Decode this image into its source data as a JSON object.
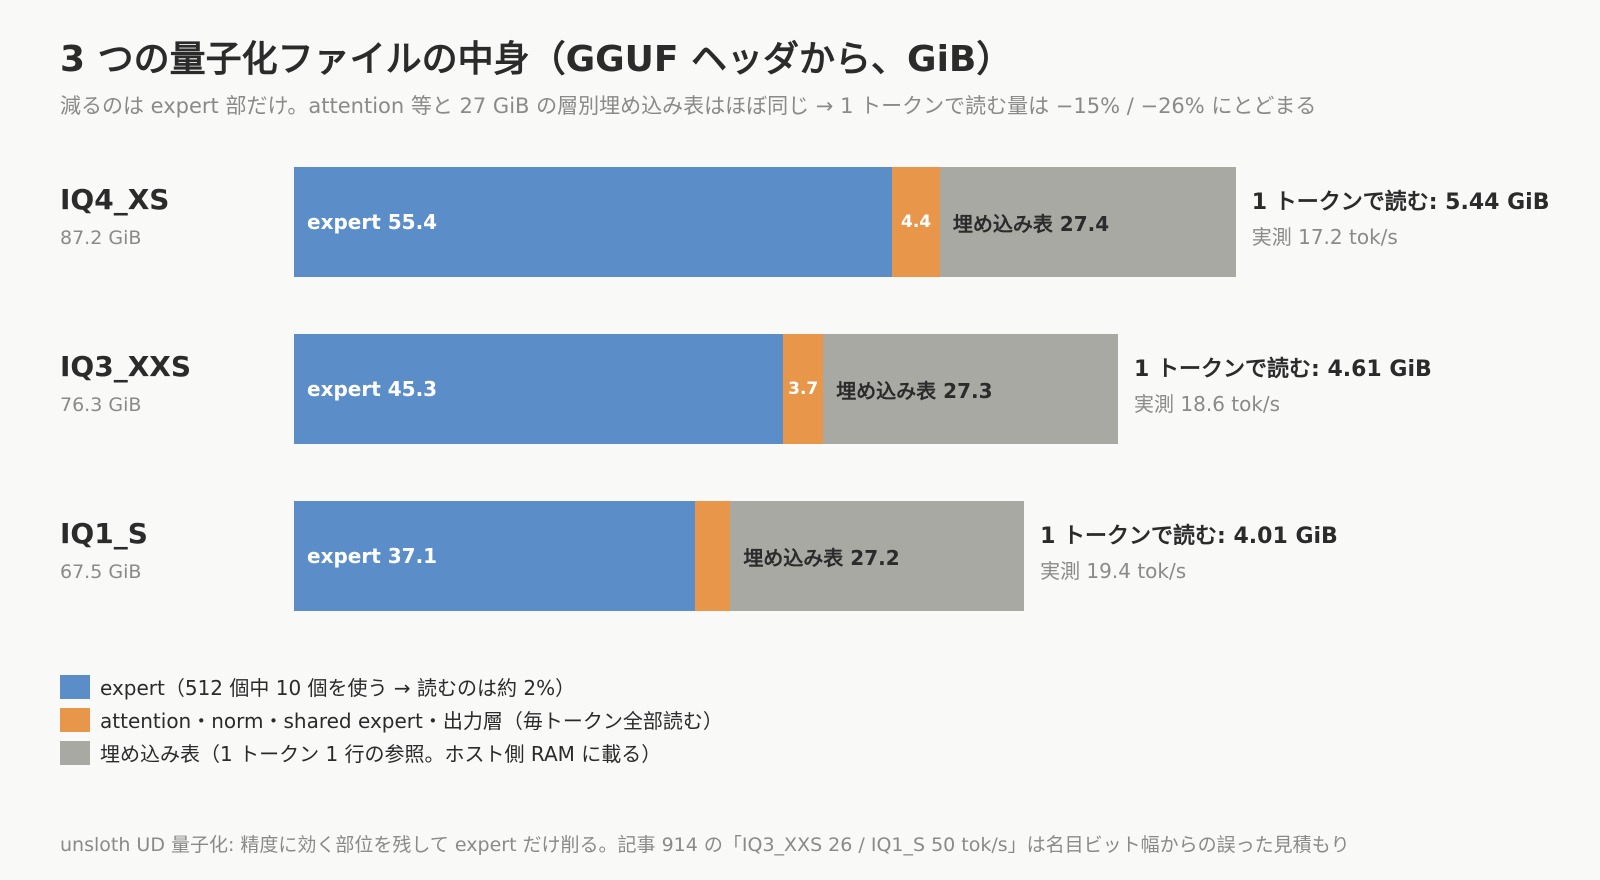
{
  "title": "3 つの量子化ファイルの中身（GGUF ヘッダから、GiB）",
  "subtitle": "減るのは expert 部だけ。attention 等と 27 GiB の層別埋め込み表はほぼ同じ → 1 トークンで読む量は −15% / −26% にとどまる",
  "colors": {
    "expert": "#5b8dc8",
    "attention": "#e8974a",
    "embedding": "#a9a9a4"
  },
  "chart_data": {
    "type": "bar",
    "orientation": "horizontal",
    "stacked": true,
    "unit": "GiB",
    "categories": [
      "IQ4_XS",
      "IQ3_XXS",
      "IQ1_S"
    ],
    "totals": [
      "87.2 GiB",
      "76.3 GiB",
      "67.5 GiB"
    ],
    "series": [
      {
        "name": "expert",
        "values": [
          55.4,
          45.3,
          37.1
        ],
        "labels": [
          "expert 55.4",
          "expert 45.3",
          "expert 37.1"
        ]
      },
      {
        "name": "attention",
        "values": [
          4.4,
          3.7,
          3.3
        ],
        "labels": [
          "4.4",
          "3.7",
          ""
        ]
      },
      {
        "name": "埋め込み表",
        "values": [
          27.4,
          27.3,
          27.2
        ],
        "labels": [
          "埋め込み表 27.4",
          "埋め込み表 27.3",
          "埋め込み表 27.2"
        ]
      }
    ],
    "read_per_token": [
      "1 トークンで読む: 5.44 GiB",
      "1 トークンで読む: 4.61 GiB",
      "1 トークンで読む: 4.01 GiB"
    ],
    "measured": [
      "実測 17.2 tok/s",
      "実測 18.6 tok/s",
      "実測 19.4 tok/s"
    ],
    "legend": [
      "expert（512 個中 10 個を使う → 読むのは約 2%）",
      "attention・norm・shared expert・出力層（毎トークン全部読む）",
      "埋め込み表（1 トークン 1 行の参照。ホスト側 RAM に載る）"
    ],
    "legend_placement": "bottom-left",
    "grid": false
  },
  "footnote": "unsloth UD 量子化: 精度に効く部位を残して expert だけ削る。記事 914 の「IQ3_XXS 26 / IQ1_S 50 tok/s」は名目ビット幅からの誤った見積もり"
}
